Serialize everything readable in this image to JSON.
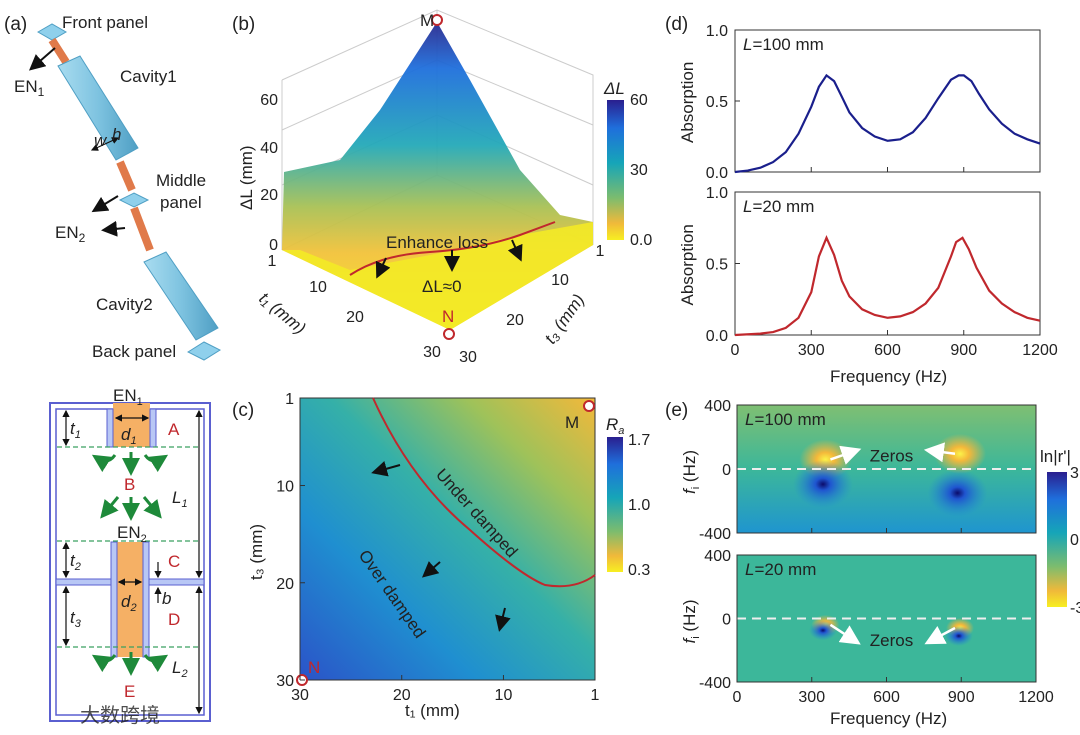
{
  "panel_labels": {
    "a": "(a)",
    "b": "(b)",
    "c": "(c)",
    "d": "(d)",
    "e": "(e)"
  },
  "panel_a": {
    "front_panel": "Front panel",
    "en1": "EN",
    "en1_sub": "1",
    "cavity1": "Cavity1",
    "w": "w",
    "h": "h",
    "middle_panel_1": "Middle",
    "middle_panel_2": "panel",
    "en2": "EN",
    "en2_sub": "2",
    "cavity2": "Cavity2",
    "back_panel": "Back panel",
    "schematic": {
      "en1": "EN",
      "en1_sub": "1",
      "en2": "EN",
      "en2_sub": "2",
      "t1": "t",
      "t1_sub": "1",
      "t2": "t",
      "t2_sub": "2",
      "t3": "t",
      "t3_sub": "3",
      "d1": "d",
      "d1_sub": "1",
      "d2": "d",
      "d2_sub": "2",
      "L1": "L",
      "L1_sub": "1",
      "L2": "L",
      "L2_sub": "2",
      "b": "b",
      "regions": [
        "A",
        "B",
        "C",
        "D",
        "E"
      ]
    },
    "watermark": "大数跨境"
  },
  "colors": {
    "navy_line": "#1a1f8c",
    "red_line": "#c0282d",
    "arrow_green": "#1e8a3a",
    "cavity_blue": "#7ec3e0",
    "rod_orange": "#e07a4a"
  },
  "chart_data": [
    {
      "id": "b",
      "type": "surface3d",
      "zlabel": "ΔL (mm)",
      "xlabel": "t₁ (mm)",
      "ylabel": "t₃ (mm)",
      "zticks": [
        "0",
        "20",
        "40",
        "60"
      ],
      "xticks": [
        "1",
        "10",
        "20",
        "30"
      ],
      "yticks": [
        "30",
        "20",
        "10",
        "1"
      ],
      "colorbar": {
        "label": "ΔL",
        "ticks": [
          "60",
          "30",
          "0.0"
        ],
        "range": [
          0,
          60
        ]
      },
      "points": {
        "M": "M",
        "N": "N"
      },
      "annotations": {
        "enhance": "Enhance loss",
        "zero": "ΔL≈0"
      }
    },
    {
      "id": "c",
      "type": "heatmap",
      "xlabel": "t₁ (mm)",
      "ylabel": "t₃ (mm)",
      "xticks": [
        30,
        20,
        10,
        1
      ],
      "yticks": [
        1,
        10,
        20,
        30
      ],
      "xlim": [
        30,
        1
      ],
      "ylim": [
        1,
        30
      ],
      "colorbar": {
        "label": "R",
        "label_sub": "a",
        "ticks": [
          "1.7",
          "1.0",
          "0.3"
        ],
        "range": [
          0.3,
          1.7
        ]
      },
      "points": {
        "M": "M",
        "N": "N"
      },
      "annotations": {
        "under": "Under damped",
        "over": "Over damped"
      }
    },
    {
      "id": "d",
      "type": "line",
      "xlabel": "Frequency (Hz)",
      "ylabel": "Absorption",
      "xticks": [
        0,
        300,
        600,
        900,
        1200
      ],
      "yticks": [
        "0.0",
        "0.5",
        "1.0"
      ],
      "xlim": [
        0,
        1200
      ],
      "ylim": [
        0,
        1
      ],
      "series": [
        {
          "name": "L=100 mm",
          "label_var": "L",
          "label_rest": "=100 mm",
          "color": "#1a1f8c",
          "x": [
            0,
            50,
            100,
            150,
            200,
            250,
            300,
            330,
            360,
            390,
            420,
            450,
            500,
            550,
            600,
            650,
            700,
            750,
            800,
            850,
            880,
            900,
            930,
            960,
            1000,
            1050,
            1100,
            1150,
            1200
          ],
          "y": [
            0,
            0.01,
            0.03,
            0.07,
            0.14,
            0.27,
            0.46,
            0.6,
            0.68,
            0.64,
            0.53,
            0.42,
            0.31,
            0.25,
            0.22,
            0.23,
            0.28,
            0.38,
            0.52,
            0.65,
            0.68,
            0.68,
            0.64,
            0.55,
            0.44,
            0.34,
            0.27,
            0.23,
            0.2
          ]
        },
        {
          "name": "L=20 mm",
          "label_var": "L",
          "label_rest": "=20 mm",
          "color": "#c0282d",
          "x": [
            0,
            100,
            150,
            200,
            250,
            300,
            330,
            360,
            390,
            420,
            450,
            500,
            550,
            600,
            650,
            700,
            750,
            800,
            850,
            870,
            895,
            920,
            950,
            1000,
            1050,
            1100,
            1150,
            1200
          ],
          "y": [
            0,
            0.01,
            0.02,
            0.05,
            0.12,
            0.3,
            0.55,
            0.68,
            0.56,
            0.38,
            0.27,
            0.18,
            0.14,
            0.12,
            0.13,
            0.16,
            0.22,
            0.33,
            0.55,
            0.65,
            0.68,
            0.6,
            0.47,
            0.31,
            0.22,
            0.16,
            0.12,
            0.1
          ]
        }
      ]
    },
    {
      "id": "e",
      "type": "heatmap",
      "xlabel": "Frequency (Hz)",
      "ylabel": "f",
      "ylabel_sub": "i",
      "ylabel_unit": " (Hz)",
      "xticks": [
        0,
        300,
        600,
        900,
        1200
      ],
      "yticks": [
        400,
        0,
        -400
      ],
      "xlim": [
        0,
        1200
      ],
      "ylim": [
        -400,
        400
      ],
      "colorbar": {
        "label": "ln|r'|",
        "ticks": [
          "3",
          "0",
          "-3"
        ],
        "range": [
          -3,
          3
        ]
      },
      "panels": [
        {
          "label_var": "L",
          "label_rest": "=100 mm",
          "annotation": "Zeros",
          "zeros": [
            [
              355,
              60
            ],
            [
              895,
              95
            ]
          ],
          "poles": [
            [
              345,
              -95
            ],
            [
              885,
              -150
            ]
          ]
        },
        {
          "label_var": "L",
          "label_rest": "=20 mm",
          "annotation": "Zeros",
          "zeros": [
            [
              355,
              -40
            ],
            [
              895,
              -60
            ]
          ],
          "poles": [
            [
              345,
              -75
            ],
            [
              890,
              -110
            ]
          ]
        }
      ]
    }
  ]
}
